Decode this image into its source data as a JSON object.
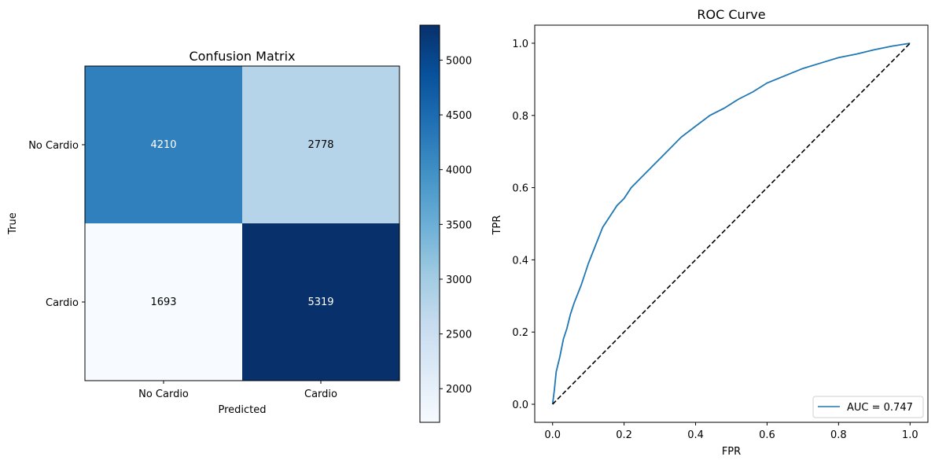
{
  "chart_data": [
    {
      "type": "heatmap",
      "title": "Confusion Matrix",
      "xlabel": "Predicted",
      "ylabel": "True",
      "x_categories": [
        "No Cardio",
        "Cardio"
      ],
      "y_categories": [
        "No Cardio",
        "Cardio"
      ],
      "values": [
        [
          4210,
          2778
        ],
        [
          1693,
          5319
        ]
      ],
      "colormap": "Blues",
      "colorbar": {
        "min": 1693,
        "max": 5319,
        "ticks": [
          2000,
          2500,
          3000,
          3500,
          4000,
          4500,
          5000
        ]
      },
      "cell_text_colors": {
        "light_on_dark": "#ffffff",
        "dark_on_light": "#000000"
      }
    },
    {
      "type": "line",
      "title": "ROC Curve",
      "xlabel": "FPR",
      "ylabel": "TPR",
      "xlim": [
        -0.05,
        1.05
      ],
      "ylim": [
        -0.05,
        1.05
      ],
      "xticks": [
        0.0,
        0.2,
        0.4,
        0.6,
        0.8,
        1.0
      ],
      "yticks": [
        0.0,
        0.2,
        0.4,
        0.6,
        0.8,
        1.0
      ],
      "legend_position": "lower-right",
      "series": [
        {
          "name": "AUC = 0.747",
          "color": "#1f77b4",
          "x": [
            0.0,
            0.005,
            0.01,
            0.02,
            0.03,
            0.04,
            0.05,
            0.06,
            0.08,
            0.1,
            0.12,
            0.14,
            0.16,
            0.18,
            0.2,
            0.22,
            0.25,
            0.28,
            0.3,
            0.33,
            0.36,
            0.4,
            0.44,
            0.48,
            0.52,
            0.56,
            0.6,
            0.65,
            0.7,
            0.75,
            0.8,
            0.85,
            0.9,
            0.95,
            1.0
          ],
          "y": [
            0.0,
            0.04,
            0.09,
            0.13,
            0.18,
            0.21,
            0.25,
            0.28,
            0.33,
            0.39,
            0.44,
            0.49,
            0.52,
            0.55,
            0.57,
            0.6,
            0.63,
            0.66,
            0.68,
            0.71,
            0.74,
            0.77,
            0.8,
            0.82,
            0.845,
            0.865,
            0.89,
            0.91,
            0.93,
            0.945,
            0.96,
            0.97,
            0.982,
            0.992,
            1.0
          ]
        },
        {
          "name": "",
          "color": "#000000",
          "style": "dashed",
          "x": [
            0.0,
            1.0
          ],
          "y": [
            0.0,
            1.0
          ]
        }
      ]
    }
  ]
}
